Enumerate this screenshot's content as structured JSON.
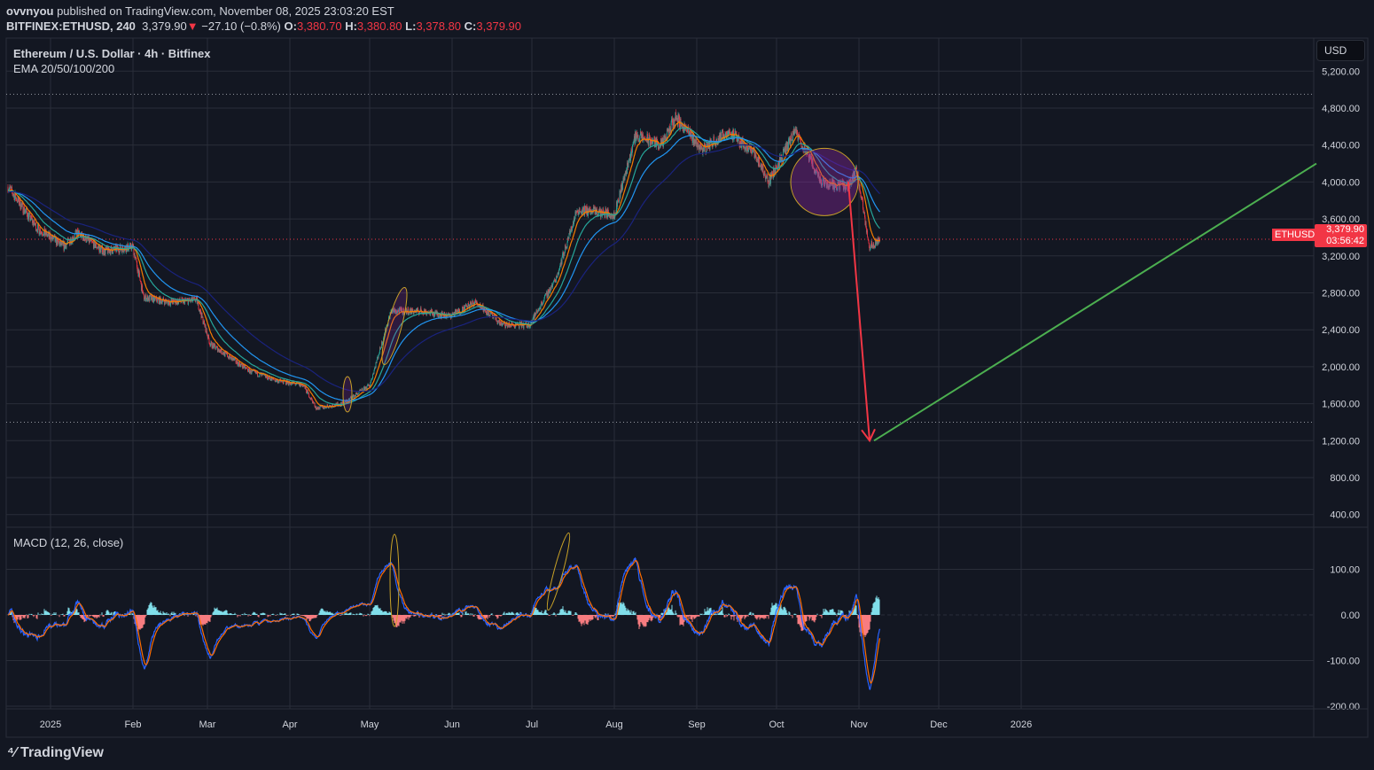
{
  "header": {
    "user": "ovvnyou",
    "published": " published on TradingView.com, November 08, 2025 23:03:20 EST",
    "symbol": "BITFINEX:ETHUSD, 240",
    "last": "3,379.90",
    "change": "−27.10 (−0.8%)",
    "o_label": "O:",
    "o": "3,380.70",
    "h_label": "H:",
    "h": "3,380.80",
    "l_label": "L:",
    "l": "3,378.80",
    "c_label": "C:",
    "c": "3,379.90"
  },
  "legend": {
    "title": "Ethereum / U.S. Dollar · 4h · Bitfinex",
    "ema": "EMA 20/50/100/200",
    "macd": "MACD (12, 26, close)"
  },
  "currency": "USD",
  "price_tag": {
    "symbol": "ETHUSD",
    "price": "3,379.90",
    "countdown": "03:56:42"
  },
  "logo": "TradingView",
  "colors": {
    "up": "#26a69a",
    "down": "#f23645",
    "bg": "#131722",
    "grid": "#2a2e39",
    "ema20": "#f57c00",
    "ema50": "#26a69a",
    "ema100": "#2196f3",
    "ema200": "#1a237e",
    "trend": "#4caf50"
  },
  "chart_data": {
    "type": "candlestick",
    "price_axis": {
      "range": [
        400,
        5200
      ],
      "ticks": [
        "5,200.00",
        "4,800.00",
        "4,400.00",
        "4,000.00",
        "3,600.00",
        "3,200.00",
        "2,800.00",
        "2,400.00",
        "2,000.00",
        "1,600.00",
        "1,200.00",
        "800.00",
        "400.00"
      ]
    },
    "macd_axis": {
      "range": [
        -200,
        150
      ],
      "ticks": [
        "100.00",
        "0.00",
        "-100.00",
        "-200.00"
      ]
    },
    "time_axis": {
      "ticks": [
        {
          "label": "2025",
          "day": 0
        },
        {
          "label": "Feb",
          "day": 31
        },
        {
          "label": "Mar",
          "day": 59
        },
        {
          "label": "Apr",
          "day": 90
        },
        {
          "label": "May",
          "day": 120
        },
        {
          "label": "Jun",
          "day": 151
        },
        {
          "label": "Jul",
          "day": 181
        },
        {
          "label": "Aug",
          "day": 212
        },
        {
          "label": "Sep",
          "day": 243
        },
        {
          "label": "Oct",
          "day": 273
        },
        {
          "label": "Nov",
          "day": 304
        },
        {
          "label": "Dec",
          "day": 334
        },
        {
          "label": "2026",
          "day": 365
        }
      ]
    },
    "price_keypoints": [
      [
        -16,
        3950
      ],
      [
        -5,
        3500
      ],
      [
        5,
        3300
      ],
      [
        10,
        3450
      ],
      [
        20,
        3250
      ],
      [
        31,
        3300
      ],
      [
        35,
        2750
      ],
      [
        45,
        2700
      ],
      [
        55,
        2720
      ],
      [
        60,
        2250
      ],
      [
        75,
        1950
      ],
      [
        85,
        1850
      ],
      [
        95,
        1800
      ],
      [
        100,
        1550
      ],
      [
        110,
        1600
      ],
      [
        120,
        1800
      ],
      [
        128,
        2600
      ],
      [
        140,
        2600
      ],
      [
        150,
        2550
      ],
      [
        160,
        2700
      ],
      [
        170,
        2450
      ],
      [
        180,
        2450
      ],
      [
        190,
        2950
      ],
      [
        198,
        3700
      ],
      [
        212,
        3650
      ],
      [
        220,
        4500
      ],
      [
        230,
        4400
      ],
      [
        235,
        4700
      ],
      [
        245,
        4350
      ],
      [
        255,
        4550
      ],
      [
        265,
        4300
      ],
      [
        270,
        4000
      ],
      [
        280,
        4550
      ],
      [
        290,
        4000
      ],
      [
        300,
        3950
      ],
      [
        303,
        4150
      ],
      [
        308,
        3300
      ],
      [
        312,
        3380
      ]
    ],
    "last_price": 3379.9,
    "annotations": {
      "arrow_target": 1200,
      "trendline": [
        [
          309,
          1200
        ],
        [
          476,
          4200
        ]
      ],
      "circle_center": [
        291,
        4000
      ],
      "hlines": [
        4950,
        1400
      ]
    }
  }
}
